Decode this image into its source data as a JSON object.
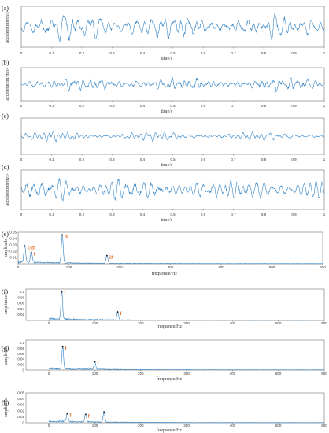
{
  "chart_data": [
    {
      "type": "line",
      "panel_label": "(a)",
      "xlabel": "time/s",
      "ylabel": "acceleration/m/s²",
      "xticks": [
        "0",
        "0.1",
        "0.2",
        "0.3",
        "0.4",
        "0.5",
        "0.6",
        "0.7",
        "0.8",
        "0.9",
        "1"
      ],
      "xlim": [
        0,
        1
      ],
      "series": [
        {
          "signal": "vibration",
          "seed": 11,
          "amp": 1.0,
          "noise": 0.25
        }
      ]
    },
    {
      "type": "line",
      "panel_label": "(b)",
      "xlabel": "time/s",
      "ylabel": "acceleration/m/s²",
      "xticks": [
        "0",
        "0.1",
        "0.2",
        "0.3",
        "0.4",
        "0.5",
        "0.6",
        "0.7",
        "0.8",
        "0.9",
        "1"
      ],
      "xlim": [
        0,
        1
      ],
      "series": [
        {
          "signal": "vibration",
          "seed": 23,
          "amp": 0.6,
          "noise": 0.3
        }
      ]
    },
    {
      "type": "line",
      "panel_label": "(c)",
      "xlabel": "time/s",
      "ylabel": "",
      "xticks": [
        "0",
        "0.1",
        "0.2",
        "0.3",
        "0.4",
        "0.5",
        "0.6",
        "0.7",
        "0.8",
        "0.9",
        "1"
      ],
      "xlim": [
        0,
        1
      ],
      "series": [
        {
          "signal": "vibration",
          "seed": 37,
          "amp": 0.45,
          "noise": 0.2
        }
      ]
    },
    {
      "type": "line",
      "panel_label": "(d)",
      "xlabel": "time/s",
      "ylabel": "acceleration/m/s²",
      "xticks": [
        "0",
        "0.1",
        "0.2",
        "0.3",
        "0.4",
        "0.5",
        "0.6",
        "0.7",
        "0.8",
        "0.9",
        "1"
      ],
      "xlim": [
        0,
        1
      ],
      "series": [
        {
          "signal": "vibration",
          "seed": 51,
          "amp": 0.8,
          "noise": 0.3
        }
      ]
    },
    {
      "type": "line",
      "panel_label": "(e)",
      "xlabel": "frequence/Hz",
      "ylabel": "amplitude",
      "xticks": [
        "0",
        "100",
        "200",
        "300",
        "400",
        "500",
        "600"
      ],
      "xlim": [
        0,
        600
      ],
      "yticks": [
        "0.05",
        "0.04",
        "0.03",
        "0.02",
        "0.01"
      ],
      "ylim": [
        0,
        0.05
      ],
      "peaks": [
        [
          13,
          0.028
        ],
        [
          26,
          0.018
        ],
        [
          87,
          0.046
        ],
        [
          175,
          0.013
        ]
      ],
      "annotations": [
        {
          "x": 13,
          "y": 0.028,
          "text": "1/2f"
        },
        {
          "x": 26,
          "y": 0.018,
          "text": "f"
        },
        {
          "x": 87,
          "y": 0.046,
          "text": "3f"
        },
        {
          "x": 175,
          "y": 0.013,
          "text": "2f"
        }
      ]
    },
    {
      "type": "line",
      "panel_label": "(f)",
      "xlabel": "frequence/Hz",
      "ylabel": "amplitude",
      "xticks": [
        "0",
        "100",
        "200",
        "300",
        "400",
        "500",
        "600"
      ],
      "xlim": [
        -50,
        600
      ],
      "yticks": [
        "0.1",
        "0.08",
        "0.06",
        "0.04",
        "0.02"
      ],
      "ylim": [
        0,
        0.11
      ],
      "peaks": [
        [
          28,
          0.1
        ],
        [
          150,
          0.03
        ]
      ],
      "annotations": [
        {
          "x": 28,
          "y": 0.1,
          "text": "f"
        },
        {
          "x": 150,
          "y": 0.03,
          "text": "f"
        }
      ]
    },
    {
      "type": "line",
      "panel_label": "(g)",
      "xlabel": "frequence/Hz",
      "ylabel": "amplitude",
      "xticks": [
        "0",
        "100",
        "200",
        "300",
        "400",
        "500",
        "600"
      ],
      "xlim": [
        -50,
        600
      ],
      "yticks": [
        "0.1",
        "0.08",
        "0.06",
        "0.04",
        "0.02",
        "0"
      ],
      "ylim": [
        0,
        0.11
      ],
      "peaks": [
        [
          30,
          0.085
        ],
        [
          100,
          0.03
        ]
      ],
      "annotations": [
        {
          "x": 30,
          "y": 0.085,
          "text": "f"
        },
        {
          "x": 100,
          "y": 0.03,
          "text": "f"
        }
      ]
    },
    {
      "type": "line",
      "panel_label": "(h)",
      "xlabel": "frequence/Hz",
      "ylabel": "amplitude",
      "xticks": [
        "0",
        "100",
        "200",
        "300",
        "400",
        "500",
        "600"
      ],
      "xlim": [
        -50,
        600
      ],
      "yticks": [
        "0.05",
        "0.04",
        "0.03",
        "0.02",
        "0.01",
        "0"
      ],
      "ylim": [
        0,
        0.05
      ],
      "peaks": [
        [
          40,
          0.015
        ],
        [
          80,
          0.014
        ],
        [
          120,
          0.018
        ]
      ],
      "annotations": [
        {
          "x": 40,
          "y": 0.015,
          "text": "f"
        },
        {
          "x": 80,
          "y": 0.014,
          "text": "f"
        }
      ]
    }
  ]
}
